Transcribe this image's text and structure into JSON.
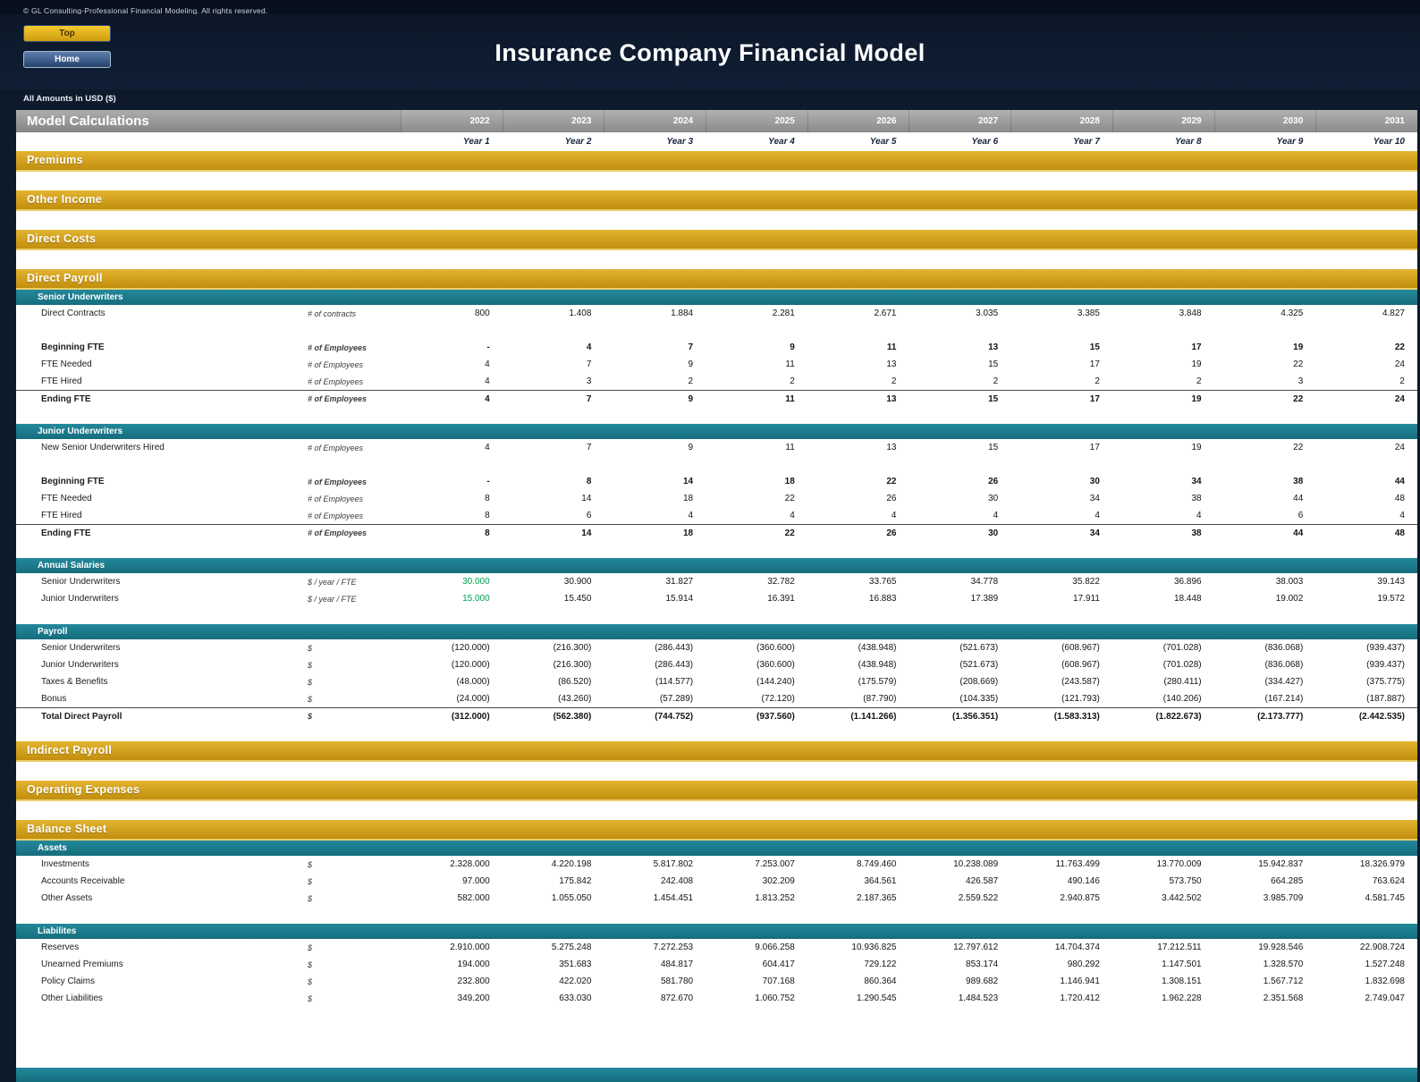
{
  "header": {
    "copyright": "© GL Consulting-Professional Financial Modeling. All rights reserved.",
    "top_button": "Top",
    "home_button": "Home",
    "title": "Insurance Company Financial Model",
    "amounts_note": "All Amounts in  USD ($)"
  },
  "colors": {
    "gold": "#d0a21d",
    "teal": "#1b7f91",
    "navy": "#0d1a2c",
    "green_input": "#00a050"
  },
  "sheet": {
    "title": "Model Calculations",
    "years": [
      "2022",
      "2023",
      "2024",
      "2025",
      "2026",
      "2027",
      "2028",
      "2029",
      "2030",
      "2031"
    ],
    "year_labels": [
      "Year 1",
      "Year 2",
      "Year 3",
      "Year 4",
      "Year 5",
      "Year 6",
      "Year 7",
      "Year 8",
      "Year 9",
      "Year 10"
    ],
    "blocks": [
      {
        "type": "gold",
        "label": "Premiums"
      },
      {
        "type": "spacer"
      },
      {
        "type": "gold",
        "label": "Other Income"
      },
      {
        "type": "spacer"
      },
      {
        "type": "gold",
        "label": "Direct Costs"
      },
      {
        "type": "spacer"
      },
      {
        "type": "gold",
        "label": "Direct Payroll"
      },
      {
        "type": "teal",
        "label": "Senior Underwriters"
      },
      {
        "type": "row",
        "label": "Direct Contracts",
        "unit": "# of contracts",
        "values": [
          "800",
          "1.408",
          "1.884",
          "2.281",
          "2.671",
          "3.035",
          "3.385",
          "3.848",
          "4.325",
          "4.827"
        ]
      },
      {
        "type": "spacer",
        "size": "thin"
      },
      {
        "type": "row",
        "label": "Beginning FTE",
        "unit": "# of Employees",
        "bold": true,
        "values": [
          "-",
          "4",
          "7",
          "9",
          "11",
          "13",
          "15",
          "17",
          "19",
          "22"
        ]
      },
      {
        "type": "row",
        "label": "FTE Needed",
        "unit": "# of Employees",
        "values": [
          "4",
          "7",
          "9",
          "11",
          "13",
          "15",
          "17",
          "19",
          "22",
          "24"
        ]
      },
      {
        "type": "row",
        "label": "FTE Hired",
        "unit": "# of Employees",
        "values": [
          "4",
          "3",
          "2",
          "2",
          "2",
          "2",
          "2",
          "2",
          "3",
          "2"
        ]
      },
      {
        "type": "row",
        "label": "Ending FTE",
        "unit": "# of Employees",
        "bold": true,
        "topline": true,
        "values": [
          "4",
          "7",
          "9",
          "11",
          "13",
          "15",
          "17",
          "19",
          "22",
          "24"
        ]
      },
      {
        "type": "spacer",
        "size": "thin"
      },
      {
        "type": "teal",
        "label": "Junior Underwriters"
      },
      {
        "type": "row",
        "label": "New Senior Underwriters Hired",
        "unit": "# of Employees",
        "values": [
          "4",
          "7",
          "9",
          "11",
          "13",
          "15",
          "17",
          "19",
          "22",
          "24"
        ]
      },
      {
        "type": "spacer",
        "size": "thin"
      },
      {
        "type": "row",
        "label": "Beginning FTE",
        "unit": "# of Employees",
        "bold": true,
        "values": [
          "-",
          "8",
          "14",
          "18",
          "22",
          "26",
          "30",
          "34",
          "38",
          "44"
        ]
      },
      {
        "type": "row",
        "label": "FTE Needed",
        "unit": "# of Employees",
        "values": [
          "8",
          "14",
          "18",
          "22",
          "26",
          "30",
          "34",
          "38",
          "44",
          "48"
        ]
      },
      {
        "type": "row",
        "label": "FTE Hired",
        "unit": "# of Employees",
        "values": [
          "8",
          "6",
          "4",
          "4",
          "4",
          "4",
          "4",
          "4",
          "6",
          "4"
        ]
      },
      {
        "type": "row",
        "label": "Ending FTE",
        "unit": "# of Employees",
        "bold": true,
        "topline": true,
        "values": [
          "8",
          "14",
          "18",
          "22",
          "26",
          "30",
          "34",
          "38",
          "44",
          "48"
        ]
      },
      {
        "type": "spacer",
        "size": "thin"
      },
      {
        "type": "teal",
        "label": "Annual Salaries"
      },
      {
        "type": "row",
        "label": "Senior Underwriters",
        "unit": "$ / year / FTE",
        "first_green": true,
        "values": [
          "30.000",
          "30.900",
          "31.827",
          "32.782",
          "33.765",
          "34.778",
          "35.822",
          "36.896",
          "38.003",
          "39.143"
        ]
      },
      {
        "type": "row",
        "label": "Junior Underwriters",
        "unit": "$ / year / FTE",
        "first_green": true,
        "values": [
          "15.000",
          "15.450",
          "15.914",
          "16.391",
          "16.883",
          "17.389",
          "17.911",
          "18.448",
          "19.002",
          "19.572"
        ]
      },
      {
        "type": "spacer",
        "size": "thin"
      },
      {
        "type": "teal",
        "label": "Payroll"
      },
      {
        "type": "row",
        "label": "Senior Underwriters",
        "unit": "$",
        "values": [
          "(120.000)",
          "(216.300)",
          "(286.443)",
          "(360.600)",
          "(438.948)",
          "(521.673)",
          "(608.967)",
          "(701.028)",
          "(836.068)",
          "(939.437)"
        ]
      },
      {
        "type": "row",
        "label": "Junior Underwriters",
        "unit": "$",
        "values": [
          "(120.000)",
          "(216.300)",
          "(286.443)",
          "(360.600)",
          "(438.948)",
          "(521.673)",
          "(608.967)",
          "(701.028)",
          "(836.068)",
          "(939.437)"
        ]
      },
      {
        "type": "row",
        "label": "Taxes & Benefits",
        "unit": "$",
        "values": [
          "(48.000)",
          "(86.520)",
          "(114.577)",
          "(144.240)",
          "(175.579)",
          "(208.669)",
          "(243.587)",
          "(280.411)",
          "(334.427)",
          "(375.775)"
        ]
      },
      {
        "type": "row",
        "label": "Bonus",
        "unit": "$",
        "values": [
          "(24.000)",
          "(43.260)",
          "(57.289)",
          "(72.120)",
          "(87.790)",
          "(104.335)",
          "(121.793)",
          "(140.206)",
          "(167.214)",
          "(187.887)"
        ]
      },
      {
        "type": "row",
        "label": "Total Direct Payroll",
        "unit": "$",
        "bold": true,
        "topline": true,
        "values": [
          "(312.000)",
          "(562.380)",
          "(744.752)",
          "(937.560)",
          "(1.141.266)",
          "(1.356.351)",
          "(1.583.313)",
          "(1.822.673)",
          "(2.173.777)",
          "(2.442.535)"
        ]
      },
      {
        "type": "spacer",
        "size": "thin"
      },
      {
        "type": "gold",
        "label": "Indirect Payroll"
      },
      {
        "type": "spacer"
      },
      {
        "type": "gold",
        "label": "Operating Expenses"
      },
      {
        "type": "spacer"
      },
      {
        "type": "gold",
        "label": "Balance Sheet"
      },
      {
        "type": "teal",
        "label": "Assets"
      },
      {
        "type": "row",
        "label": "Investments",
        "unit": "$",
        "values": [
          "2.328.000",
          "4.220.198",
          "5.817.802",
          "7.253.007",
          "8.749.460",
          "10.238.089",
          "11.763.499",
          "13.770.009",
          "15.942.837",
          "18.326.979"
        ]
      },
      {
        "type": "row",
        "label": "Accounts Receivable",
        "unit": "$",
        "values": [
          "97.000",
          "175.842",
          "242.408",
          "302.209",
          "364.561",
          "426.587",
          "490.146",
          "573.750",
          "664.285",
          "763.624"
        ]
      },
      {
        "type": "row",
        "label": "Other Assets",
        "unit": "$",
        "values": [
          "582.000",
          "1.055.050",
          "1.454.451",
          "1.813.252",
          "2.187.365",
          "2.559.522",
          "2.940.875",
          "3.442.502",
          "3.985.709",
          "4.581.745"
        ]
      },
      {
        "type": "spacer",
        "size": "thin"
      },
      {
        "type": "teal",
        "label": "Liabilites"
      },
      {
        "type": "row",
        "label": "Reserves",
        "unit": "$",
        "values": [
          "2.910.000",
          "5.275.248",
          "7.272.253",
          "9.066.258",
          "10.936.825",
          "12.797.612",
          "14.704.374",
          "17.212.511",
          "19.928.546",
          "22.908.724"
        ]
      },
      {
        "type": "row",
        "label": "Unearned Premiums",
        "unit": "$",
        "values": [
          "194.000",
          "351.683",
          "484.817",
          "604.417",
          "729.122",
          "853.174",
          "980.292",
          "1.147.501",
          "1.328.570",
          "1.527.248"
        ]
      },
      {
        "type": "row",
        "label": "Policy Claims",
        "unit": "$",
        "values": [
          "232.800",
          "422.020",
          "581.780",
          "707.168",
          "860.364",
          "989.682",
          "1.146.941",
          "1.308.151",
          "1.567.712",
          "1.832.698"
        ]
      },
      {
        "type": "row",
        "label": "Other Liabilities",
        "unit": "$",
        "values": [
          "349.200",
          "633.030",
          "872.670",
          "1.060.752",
          "1.290.545",
          "1.484.523",
          "1.720.412",
          "1.962.228",
          "2.351.568",
          "2.749.047"
        ]
      }
    ]
  }
}
